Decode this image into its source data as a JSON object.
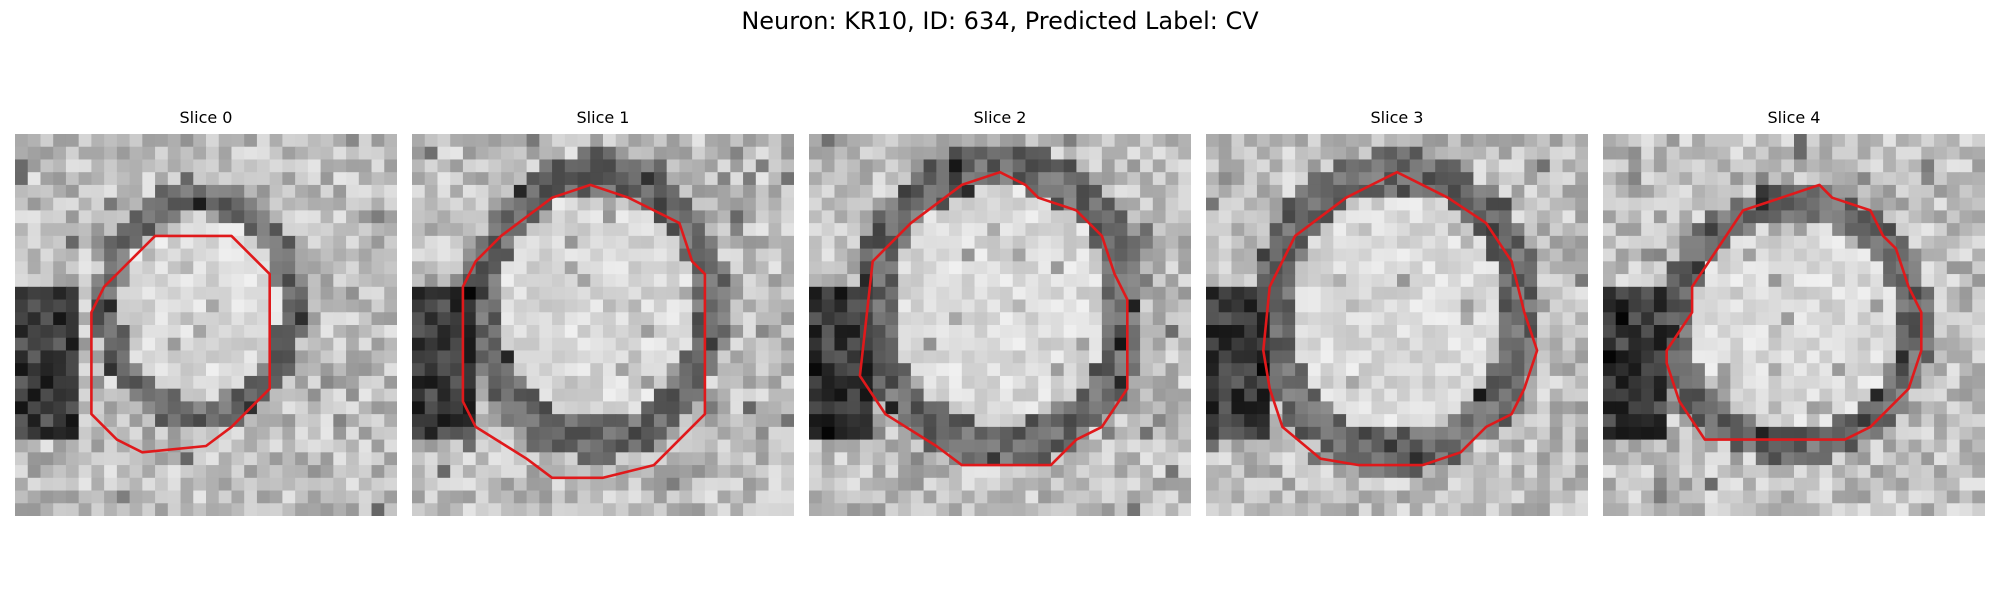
{
  "figure": {
    "title": "Neuron: KR10, ID: 634, Predicted Label: CV"
  },
  "panels": [
    {
      "title": "Slice 0",
      "contour_color": "#e0191b"
    },
    {
      "title": "Slice 1",
      "contour_color": "#e0191b"
    },
    {
      "title": "Slice 2",
      "contour_color": "#e0191b"
    },
    {
      "title": "Slice 3",
      "contour_color": "#e0191b"
    },
    {
      "title": "Slice 4",
      "contour_color": "#e0191b"
    }
  ]
}
